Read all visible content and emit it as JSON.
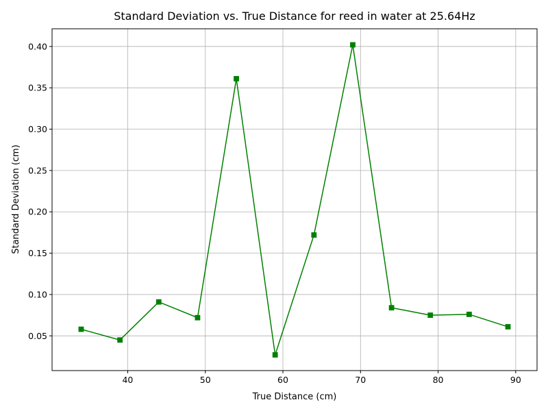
{
  "chart_data": {
    "type": "line",
    "title": "Standard Deviation vs. True Distance for reed in water at 25.64Hz",
    "xlabel": "True Distance (cm)",
    "ylabel": "Standard Deviation (cm)",
    "xlim": [
      30.25,
      92.75
    ],
    "ylim": [
      0.008,
      0.4214
    ],
    "xticks": [
      40,
      50,
      60,
      70,
      80,
      90
    ],
    "xtick_labels": [
      "40",
      "50",
      "60",
      "70",
      "80",
      "90"
    ],
    "yticks": [
      0.05,
      0.1,
      0.15,
      0.2,
      0.25,
      0.3,
      0.35,
      0.4
    ],
    "ytick_labels": [
      "0.05",
      "0.10",
      "0.15",
      "0.20",
      "0.25",
      "0.30",
      "0.35",
      "0.40"
    ],
    "grid": true,
    "marker": "square",
    "color": "#008000",
    "series": [
      {
        "x": [
          34,
          39,
          44,
          49,
          54,
          59,
          64,
          69,
          74,
          79,
          84,
          89
        ],
        "values": [
          0.058,
          0.045,
          0.091,
          0.072,
          0.361,
          0.027,
          0.172,
          0.402,
          0.084,
          0.075,
          0.076,
          0.061
        ]
      }
    ]
  }
}
